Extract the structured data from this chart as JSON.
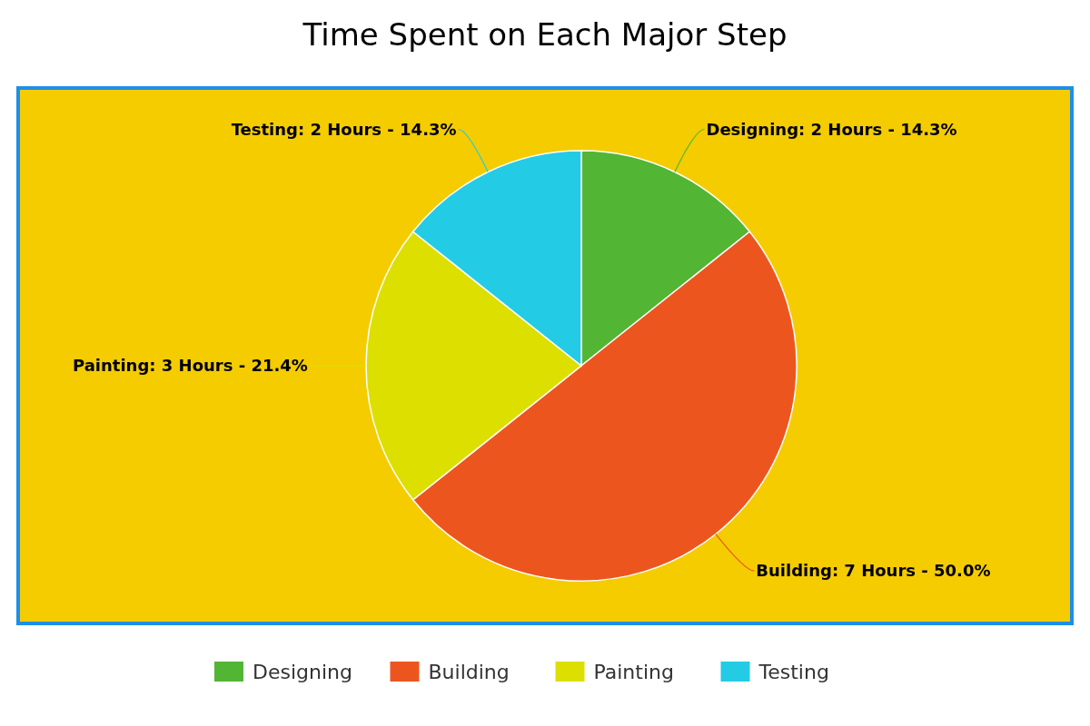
{
  "chart_data": {
    "type": "pie",
    "title": "Time Spent on Each Major Step",
    "categories": [
      "Designing",
      "Building",
      "Painting",
      "Testing"
    ],
    "values": [
      2,
      7,
      3,
      2
    ],
    "colors": [
      "#52b534",
      "#ec561e",
      "#dddf00",
      "#24cbe5"
    ],
    "value_labels": [
      "Designing: 2 Hours - 14.3%",
      "Building: 7 Hours - 50.0%",
      "Painting: 3 Hours - 21.4%",
      "Testing: 2 Hours - 14.3%"
    ],
    "legend": "bottom"
  }
}
